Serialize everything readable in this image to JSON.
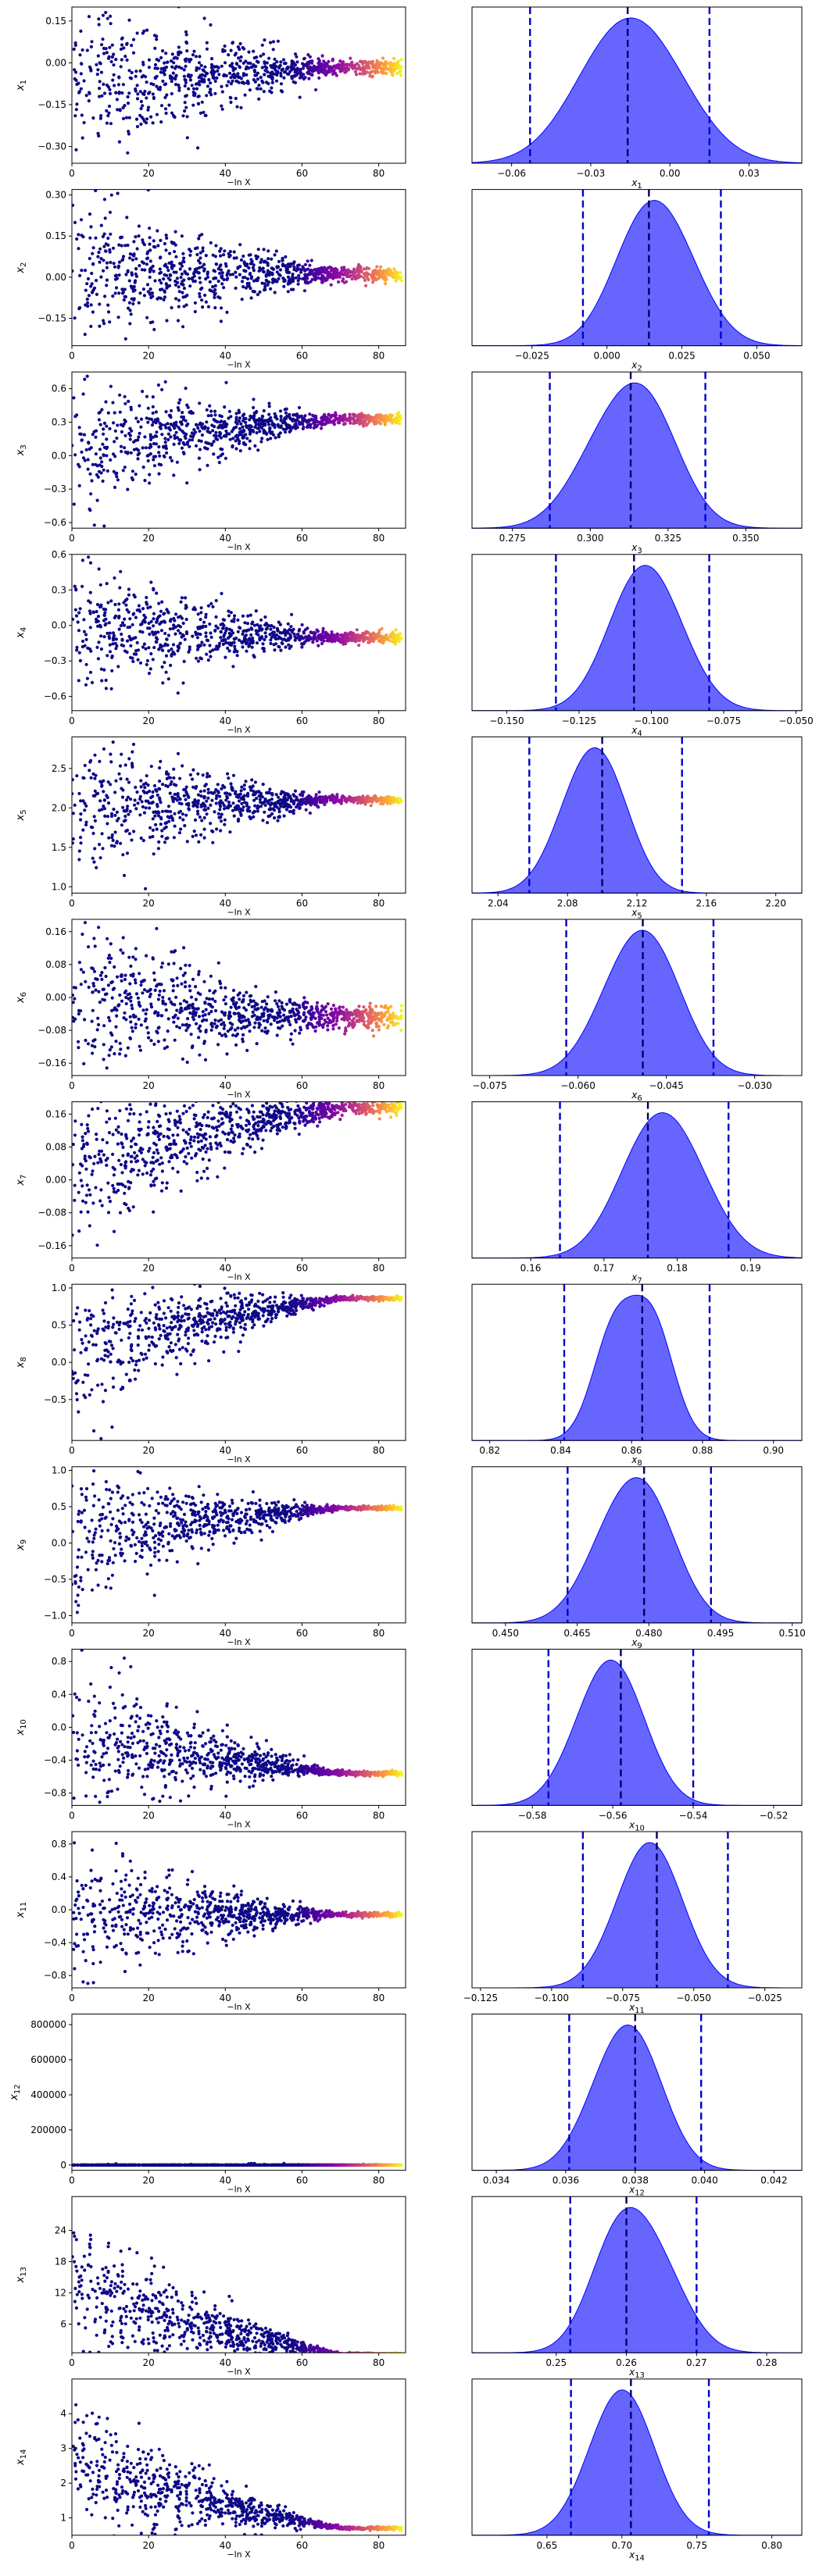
{
  "figure": {
    "trace_xlabel": "−ln X",
    "trace_x_ticks": [
      0,
      20,
      40,
      60,
      80
    ],
    "trace_xlim": [
      0,
      87
    ],
    "colormap": "plasma",
    "kde_color": "#0000ff",
    "quantile_line_color": "#0000cc"
  },
  "chart_data": [
    {
      "type": "scatter",
      "param": "x1",
      "ylabel": "x_1",
      "ylim": [
        -0.36,
        0.2
      ],
      "y_ticks": [
        -0.3,
        -0.15,
        0.0,
        0.15
      ],
      "y_tick_labels": [
        "−0.30",
        "−0.15",
        "0.00",
        "0.15"
      ],
      "trace": {
        "converged_value": -0.016,
        "final_spread": 0.03,
        "early_lo": -0.36,
        "early_hi": 0.2,
        "settle_x": 70
      },
      "kde": {
        "xlabel": "x_1",
        "xlim": [
          -0.075,
          0.05
        ],
        "x_ticks": [
          -0.06,
          -0.03,
          0.0,
          0.03
        ],
        "x_tick_labels": [
          "−0.06",
          "−0.03",
          "0.00",
          "0.03"
        ],
        "median": -0.016,
        "lo": -0.053,
        "hi": 0.015,
        "peaks": [
          [
            -0.022,
            0.95
          ],
          [
            -0.005,
            0.75
          ]
        ],
        "width": 0.017
      }
    },
    {
      "type": "scatter",
      "param": "x2",
      "ylabel": "x_2",
      "ylim": [
        -0.25,
        0.32
      ],
      "y_ticks": [
        -0.15,
        0.0,
        0.15,
        0.3
      ],
      "y_tick_labels": [
        "−0.15",
        "0.00",
        "0.15",
        "0.30"
      ],
      "trace": {
        "converged_value": 0.012,
        "final_spread": 0.03,
        "early_lo": -0.25,
        "early_hi": 0.3,
        "settle_x": 70
      },
      "kde": {
        "xlabel": "x_2",
        "xlim": [
          -0.045,
          0.065
        ],
        "x_ticks": [
          -0.025,
          0.0,
          0.025,
          0.05
        ],
        "x_tick_labels": [
          "−0.025",
          "0.000",
          "0.025",
          "0.050"
        ],
        "median": 0.014,
        "lo": -0.008,
        "hi": 0.038,
        "peaks": [
          [
            0.012,
            0.95
          ],
          [
            0.024,
            0.55
          ]
        ],
        "width": 0.011
      }
    },
    {
      "type": "scatter",
      "param": "x3",
      "ylabel": "x_3",
      "ylim": [
        -0.65,
        0.75
      ],
      "y_ticks": [
        -0.6,
        -0.3,
        0.0,
        0.3,
        0.6
      ],
      "y_tick_labels": [
        "−0.6",
        "−0.3",
        "0.0",
        "0.3",
        "0.6"
      ],
      "trace": {
        "converged_value": 0.33,
        "final_spread": 0.05,
        "early_lo": -0.6,
        "early_hi": 0.6,
        "settle_x": 70
      },
      "kde": {
        "xlabel": "x_3",
        "xlim": [
          0.262,
          0.368
        ],
        "x_ticks": [
          0.275,
          0.3,
          0.325,
          0.35
        ],
        "x_tick_labels": [
          "0.275",
          "0.300",
          "0.325",
          "0.350"
        ],
        "median": 0.313,
        "lo": 0.287,
        "hi": 0.337,
        "peaks": [
          [
            0.318,
            0.95
          ],
          [
            0.303,
            0.5
          ]
        ],
        "width": 0.011
      }
    },
    {
      "type": "scatter",
      "param": "x4",
      "ylabel": "x_4",
      "ylim": [
        -0.72,
        0.6
      ],
      "y_ticks": [
        -0.6,
        -0.3,
        0.0,
        0.3,
        0.6
      ],
      "y_tick_labels": [
        "−0.6",
        "−0.3",
        "0.0",
        "0.3",
        "0.6"
      ],
      "trace": {
        "converged_value": -0.1,
        "final_spread": 0.05,
        "early_lo": -0.6,
        "early_hi": 0.55,
        "settle_x": 70
      },
      "kde": {
        "xlabel": "x_4",
        "xlim": [
          -0.162,
          -0.048
        ],
        "x_ticks": [
          -0.15,
          -0.125,
          -0.1,
          -0.075,
          -0.05
        ],
        "x_tick_labels": [
          "−0.150",
          "−0.125",
          "−0.100",
          "−0.075",
          "−0.050"
        ],
        "median": -0.106,
        "lo": -0.133,
        "hi": -0.08,
        "peaks": [
          [
            -0.106,
            0.95
          ],
          [
            -0.095,
            0.6
          ]
        ],
        "width": 0.011
      }
    },
    {
      "type": "scatter",
      "param": "x5",
      "ylabel": "x_5",
      "ylim": [
        0.92,
        2.9
      ],
      "y_ticks": [
        1.0,
        1.5,
        2.0,
        2.5
      ],
      "y_tick_labels": [
        "1.0",
        "1.5",
        "2.0",
        "2.5"
      ],
      "trace": {
        "converged_value": 2.1,
        "final_spread": 0.05,
        "early_lo": 1.0,
        "early_hi": 2.9,
        "settle_x": 70
      },
      "kde": {
        "xlabel": "x_5",
        "xlim": [
          2.025,
          2.215
        ],
        "x_ticks": [
          2.04,
          2.08,
          2.12,
          2.16,
          2.2
        ],
        "x_tick_labels": [
          "2.04",
          "2.08",
          "2.12",
          "2.16",
          "2.20"
        ],
        "median": 2.1,
        "lo": 2.058,
        "hi": 2.146,
        "peaks": [
          [
            2.102,
            0.95
          ],
          [
            2.085,
            0.65
          ]
        ],
        "width": 0.016
      }
    },
    {
      "type": "scatter",
      "param": "x6",
      "ylabel": "x_6",
      "ylim": [
        -0.19,
        0.19
      ],
      "y_ticks": [
        -0.16,
        -0.08,
        0.0,
        0.08,
        0.16
      ],
      "y_tick_labels": [
        "−0.16",
        "−0.08",
        "0.00",
        "0.08",
        "0.16"
      ],
      "trace": {
        "converged_value": -0.05,
        "final_spread": 0.03,
        "early_lo": -0.18,
        "early_hi": 0.19,
        "settle_x": 70
      },
      "kde": {
        "xlabel": "x_6",
        "xlim": [
          -0.078,
          -0.022
        ],
        "x_ticks": [
          -0.075,
          -0.06,
          -0.045,
          -0.03
        ],
        "x_tick_labels": [
          "−0.075",
          "−0.060",
          "−0.045",
          "−0.030"
        ],
        "median": -0.049,
        "lo": -0.062,
        "hi": -0.037,
        "peaks": [
          [
            -0.047,
            0.95
          ],
          [
            -0.053,
            0.6
          ]
        ],
        "width": 0.0055
      }
    },
    {
      "type": "scatter",
      "param": "x7",
      "ylabel": "x_7",
      "ylim": [
        -0.19,
        0.19
      ],
      "y_ticks": [
        -0.16,
        -0.08,
        0.0,
        0.08,
        0.16
      ],
      "y_tick_labels": [
        "−0.16",
        "−0.08",
        "0.00",
        "0.08",
        "0.16"
      ],
      "trace": {
        "converged_value": 0.175,
        "final_spread": 0.02,
        "early_lo": -0.18,
        "early_hi": 0.19,
        "settle_x": 70
      },
      "kde": {
        "xlabel": "x_7",
        "xlim": [
          0.152,
          0.197
        ],
        "x_ticks": [
          0.16,
          0.17,
          0.18,
          0.19
        ],
        "x_tick_labels": [
          "0.16",
          "0.17",
          "0.18",
          "0.19"
        ],
        "median": 0.176,
        "lo": 0.164,
        "hi": 0.187,
        "peaks": [
          [
            0.176,
            0.95
          ],
          [
            0.181,
            0.7
          ]
        ],
        "width": 0.0048
      }
    },
    {
      "type": "scatter",
      "param": "x8",
      "ylabel": "x_8",
      "ylim": [
        -1.05,
        1.05
      ],
      "y_ticks": [
        -0.5,
        0.0,
        0.5,
        1.0
      ],
      "y_tick_labels": [
        "−0.5",
        "0.0",
        "0.5",
        "1.0"
      ],
      "trace": {
        "converged_value": 0.86,
        "final_spread": 0.03,
        "early_lo": -1.0,
        "early_hi": 1.0,
        "settle_x": 70
      },
      "kde": {
        "xlabel": "x_8",
        "xlim": [
          0.815,
          0.908
        ],
        "x_ticks": [
          0.82,
          0.84,
          0.86,
          0.88,
          0.9
        ],
        "x_tick_labels": [
          "0.82",
          "0.84",
          "0.86",
          "0.88",
          "0.90"
        ],
        "median": 0.863,
        "lo": 0.841,
        "hi": 0.882,
        "peaks": [
          [
            0.855,
            0.85
          ],
          [
            0.866,
            0.9
          ]
        ],
        "width": 0.006
      }
    },
    {
      "type": "scatter",
      "param": "x9",
      "ylabel": "x_9",
      "ylim": [
        -1.1,
        1.05
      ],
      "y_ticks": [
        -1.0,
        -0.5,
        0.0,
        0.5,
        1.0
      ],
      "y_tick_labels": [
        "−1.0",
        "−0.5",
        "0.0",
        "0.5",
        "1.0"
      ],
      "trace": {
        "converged_value": 0.48,
        "final_spread": 0.03,
        "early_lo": -1.0,
        "early_hi": 1.0,
        "settle_x": 70
      },
      "kde": {
        "xlabel": "x_9",
        "xlim": [
          0.443,
          0.512
        ],
        "x_ticks": [
          0.45,
          0.465,
          0.48,
          0.495,
          0.51
        ],
        "x_tick_labels": [
          "0.450",
          "0.465",
          "0.480",
          "0.495",
          "0.510"
        ],
        "median": 0.479,
        "lo": 0.463,
        "hi": 0.493,
        "peaks": [
          [
            0.48,
            0.95
          ],
          [
            0.472,
            0.6
          ]
        ],
        "width": 0.0065
      }
    },
    {
      "type": "scatter",
      "param": "x10",
      "ylabel": "x_10",
      "ylim": [
        -0.95,
        0.95
      ],
      "y_ticks": [
        -0.8,
        -0.4,
        0.0,
        0.4,
        0.8
      ],
      "y_tick_labels": [
        "−0.8",
        "−0.4",
        "0.0",
        "0.4",
        "0.8"
      ],
      "trace": {
        "converged_value": -0.56,
        "final_spread": 0.03,
        "early_lo": -0.9,
        "early_hi": 0.9,
        "settle_x": 70
      },
      "kde": {
        "xlabel": "x_10",
        "xlim": [
          -0.595,
          -0.513
        ],
        "x_ticks": [
          -0.58,
          -0.56,
          -0.54,
          -0.52
        ],
        "x_tick_labels": [
          "−0.58",
          "−0.56",
          "−0.54",
          "−0.52"
        ],
        "median": -0.558,
        "lo": -0.576,
        "hi": -0.54,
        "peaks": [
          [
            -0.558,
            0.95
          ],
          [
            -0.565,
            0.6
          ]
        ],
        "width": 0.0075
      }
    },
    {
      "type": "scatter",
      "param": "x11",
      "ylabel": "x_11",
      "ylim": [
        -0.95,
        0.95
      ],
      "y_ticks": [
        -0.8,
        -0.4,
        0.0,
        0.4,
        0.8
      ],
      "y_tick_labels": [
        "−0.8",
        "−0.4",
        "0.0",
        "0.4",
        "0.8"
      ],
      "trace": {
        "converged_value": -0.06,
        "final_spread": 0.03,
        "early_lo": -0.9,
        "early_hi": 0.9,
        "settle_x": 70
      },
      "kde": {
        "xlabel": "x_11",
        "xlim": [
          -0.128,
          -0.012
        ],
        "x_ticks": [
          -0.125,
          -0.1,
          -0.075,
          -0.05,
          -0.025
        ],
        "x_tick_labels": [
          "−0.125",
          "−0.100",
          "−0.075",
          "−0.050",
          "−0.025"
        ],
        "median": -0.063,
        "lo": -0.089,
        "hi": -0.038,
        "peaks": [
          [
            -0.063,
            0.95
          ],
          [
            -0.07,
            0.55
          ]
        ],
        "width": 0.011
      }
    },
    {
      "type": "scatter",
      "param": "x12",
      "ylabel": "x_12",
      "ylim": [
        -30000,
        860000
      ],
      "y_ticks": [
        0,
        200000,
        400000,
        600000,
        800000
      ],
      "y_tick_labels": [
        "0",
        "200000",
        "400000",
        "600000",
        "800000"
      ],
      "trace": {
        "converged_value": 0.038,
        "final_spread": 0.0,
        "early_lo": 0,
        "early_hi": 9000,
        "settle_x": 70
      },
      "kde": {
        "xlabel": "x_12",
        "xlim": [
          0.0333,
          0.0428
        ],
        "x_ticks": [
          0.034,
          0.036,
          0.038,
          0.04,
          0.042
        ],
        "x_tick_labels": [
          "0.034",
          "0.036",
          "0.038",
          "0.040",
          "0.042"
        ],
        "median": 0.038,
        "lo": 0.0361,
        "hi": 0.0399,
        "peaks": [
          [
            0.0381,
            0.95
          ],
          [
            0.0372,
            0.6
          ]
        ],
        "width": 0.00085
      }
    },
    {
      "type": "scatter",
      "param": "x13",
      "ylabel": "x_13",
      "ylim": [
        0.5,
        30.5
      ],
      "y_ticks": [
        6,
        12,
        18,
        24
      ],
      "y_tick_labels": [
        "6",
        "12",
        "18",
        "24"
      ],
      "trace": {
        "converged_value": 0.26,
        "final_spread": 0.2,
        "early_lo": 1,
        "early_hi": 30,
        "settle_x": 70
      },
      "kde": {
        "xlabel": "x_13",
        "xlim": [
          0.238,
          0.285
        ],
        "x_ticks": [
          0.25,
          0.26,
          0.27,
          0.28
        ],
        "x_tick_labels": [
          "0.25",
          "0.26",
          "0.27",
          "0.28"
        ],
        "median": 0.26,
        "lo": 0.252,
        "hi": 0.27,
        "peaks": [
          [
            0.259,
            0.95
          ],
          [
            0.265,
            0.55
          ]
        ],
        "width": 0.0042
      }
    },
    {
      "type": "scatter",
      "param": "x14",
      "ylabel": "x_14",
      "ylim": [
        0.5,
        5.0
      ],
      "y_ticks": [
        1,
        2,
        3,
        4
      ],
      "y_tick_labels": [
        "1",
        "2",
        "3",
        "4"
      ],
      "trace": {
        "converged_value": 0.7,
        "final_spread": 0.05,
        "early_lo": 1,
        "early_hi": 4.9,
        "settle_x": 70
      },
      "kde": {
        "xlabel": "x_14",
        "xlim": [
          0.6,
          0.82
        ],
        "x_ticks": [
          0.65,
          0.7,
          0.75,
          0.8
        ],
        "x_tick_labels": [
          "0.65",
          "0.70",
          "0.75",
          "0.80"
        ],
        "median": 0.706,
        "lo": 0.666,
        "hi": 0.758,
        "peaks": [
          [
            0.706,
            0.95
          ],
          [
            0.69,
            0.6
          ]
        ],
        "width": 0.02
      }
    }
  ]
}
